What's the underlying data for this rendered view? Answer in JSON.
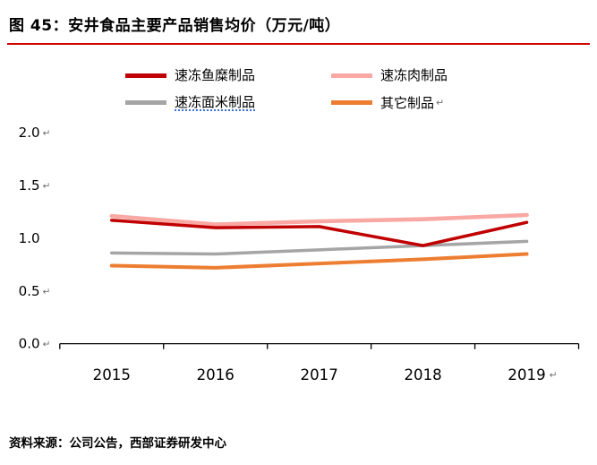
{
  "title": "图 45：安井食品主要产品销售均价（万元/吨）",
  "source": "资料来源：公司公告，西部证券研发中心",
  "marks": {
    "legend_other": "↵"
  },
  "chart_data": {
    "type": "line",
    "title": "安井食品主要产品销售均价（万元/吨）",
    "xlabel": "",
    "ylabel": "万元/吨",
    "x": [
      "2015",
      "2016",
      "2017",
      "2018",
      "2019"
    ],
    "series": [
      {
        "name": "速冻鱼糜制品",
        "color": "#c00000",
        "values": [
          1.17,
          1.1,
          1.11,
          0.93,
          1.15
        ]
      },
      {
        "name": "速冻肉制品",
        "color": "#f9a8a3",
        "values": [
          1.21,
          1.13,
          1.16,
          1.18,
          1.22
        ]
      },
      {
        "name": "速冻面米制品",
        "color": "#a5a5a5",
        "values": [
          0.86,
          0.85,
          0.89,
          0.93,
          0.97
        ]
      },
      {
        "name": "其它制品",
        "color": "#ed7d31",
        "values": [
          0.74,
          0.72,
          0.76,
          0.8,
          0.85
        ]
      }
    ],
    "ylim": [
      0.0,
      2.0
    ],
    "yticks": [
      0.0,
      0.5,
      1.0,
      1.5,
      2.0
    ],
    "ytick_marks": [
      "↵",
      "↵",
      "",
      "↵",
      "↵"
    ],
    "xtick_marks": [
      "",
      "",
      "",
      "",
      "↵"
    ],
    "grid": false,
    "legend_position": "top"
  }
}
